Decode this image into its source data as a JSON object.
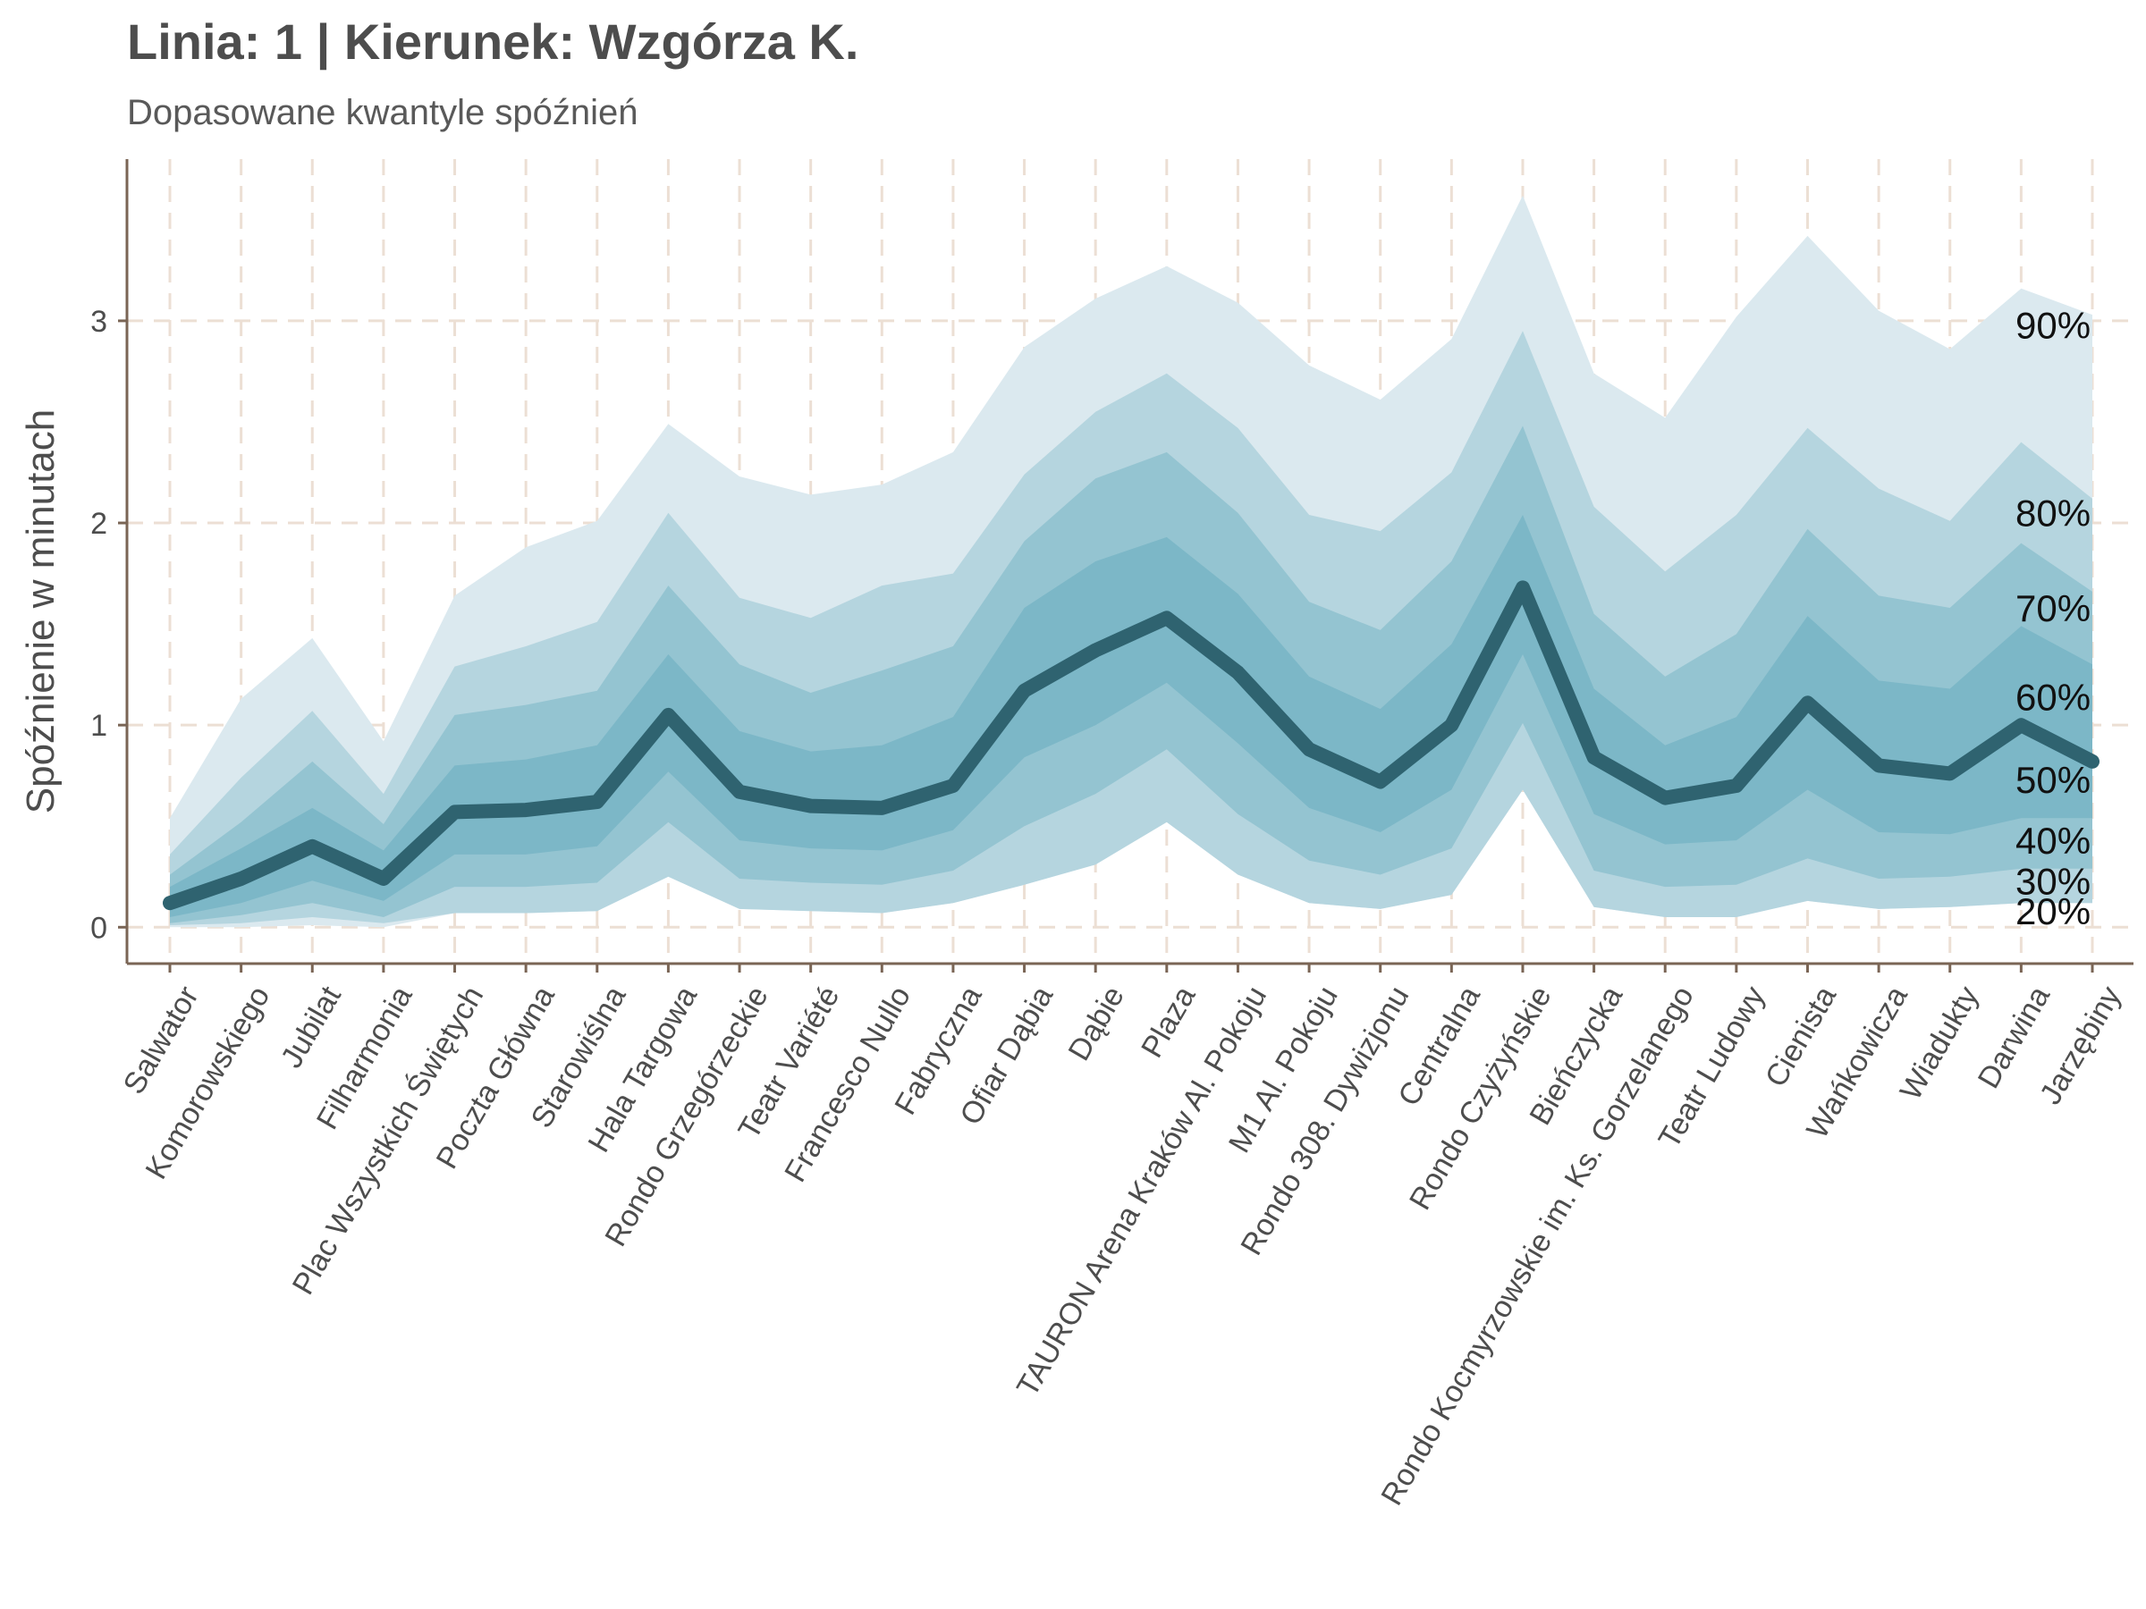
{
  "chart_data": {
    "type": "area",
    "title": "Linia: 1 | Kierunek: Wzgórza K.",
    "subtitle": "Dopasowane kwantyle spóźnień",
    "xlabel": "",
    "ylabel": "Spóźnienie w minutach",
    "ylim": [
      -0.18,
      3.8
    ],
    "y_ticks": [
      0,
      1,
      2,
      3
    ],
    "grid": true,
    "categories": [
      "Salwator",
      "Komorowskiego",
      "Jubilat",
      "Filharmonia",
      "Plac Wszystkich Świętych",
      "Poczta Główna",
      "Starowiślna",
      "Hala Targowa",
      "Rondo Grzegórzeckie",
      "Teatr Variété",
      "Francesco Nullo",
      "Fabryczna",
      "Ofiar Dąbia",
      "Dąbie",
      "Plaza",
      "TAURON Arena Kraków Al. Pokoju",
      "M1 Al. Pokoju",
      "Rondo 308. Dywizjonu",
      "Centralna",
      "Rondo Czyżyńskie",
      "Bieńczycka",
      "Rondo Kocmyrzowskie im. Ks. Gorzelanego",
      "Teatr Ludowy",
      "Cienista",
      "Wańkowicza",
      "Wiadukty",
      "Darwina",
      "Jarzębiny"
    ],
    "bands": [
      {
        "lower": [
          0.0,
          0.0,
          0.01,
          0.0,
          0.07,
          0.07,
          0.08,
          0.25,
          0.09,
          0.08,
          0.07,
          0.12,
          0.21,
          0.31,
          0.52,
          0.26,
          0.12,
          0.09,
          0.16,
          0.68,
          0.1,
          0.05,
          0.05,
          0.13,
          0.09,
          0.1,
          0.12,
          0.12
        ],
        "upper": [
          0.54,
          1.13,
          1.43,
          0.92,
          1.64,
          1.88,
          2.01,
          2.49,
          2.23,
          2.14,
          2.19,
          2.35,
          2.87,
          3.11,
          3.27,
          3.09,
          2.78,
          2.61,
          2.91,
          3.62,
          2.74,
          2.52,
          3.02,
          3.42,
          3.05,
          2.86,
          3.16,
          3.03
        ],
        "color": "#dbe9ef"
      },
      {
        "lower": [
          0.01,
          0.02,
          0.05,
          0.02,
          0.07,
          0.07,
          0.08,
          0.25,
          0.09,
          0.08,
          0.07,
          0.12,
          0.21,
          0.31,
          0.52,
          0.26,
          0.12,
          0.09,
          0.16,
          0.68,
          0.1,
          0.05,
          0.05,
          0.13,
          0.09,
          0.1,
          0.12,
          0.12
        ],
        "upper": [
          0.36,
          0.74,
          1.07,
          0.66,
          1.29,
          1.39,
          1.51,
          2.05,
          1.63,
          1.53,
          1.69,
          1.75,
          2.24,
          2.55,
          2.74,
          2.47,
          2.04,
          1.96,
          2.25,
          2.95,
          2.08,
          1.76,
          2.04,
          2.47,
          2.17,
          2.01,
          2.4,
          2.12
        ],
        "color": "#b5d5df"
      },
      {
        "lower": [
          0.02,
          0.06,
          0.12,
          0.05,
          0.2,
          0.2,
          0.22,
          0.52,
          0.24,
          0.22,
          0.21,
          0.28,
          0.5,
          0.66,
          0.88,
          0.56,
          0.33,
          0.26,
          0.39,
          1.01,
          0.28,
          0.2,
          0.21,
          0.34,
          0.24,
          0.25,
          0.29,
          0.29
        ],
        "upper": [
          0.26,
          0.52,
          0.82,
          0.51,
          1.05,
          1.1,
          1.17,
          1.69,
          1.3,
          1.16,
          1.27,
          1.39,
          1.91,
          2.22,
          2.35,
          2.05,
          1.61,
          1.47,
          1.81,
          2.48,
          1.55,
          1.24,
          1.45,
          1.97,
          1.64,
          1.58,
          1.9,
          1.66
        ],
        "color": "#94c4d1"
      },
      {
        "lower": [
          0.05,
          0.12,
          0.23,
          0.13,
          0.36,
          0.36,
          0.4,
          0.77,
          0.43,
          0.39,
          0.38,
          0.48,
          0.84,
          1.0,
          1.21,
          0.91,
          0.59,
          0.47,
          0.68,
          1.35,
          0.56,
          0.41,
          0.43,
          0.68,
          0.47,
          0.46,
          0.54,
          0.54
        ],
        "upper": [
          0.2,
          0.39,
          0.59,
          0.38,
          0.8,
          0.83,
          0.9,
          1.35,
          0.97,
          0.87,
          0.9,
          1.04,
          1.58,
          1.81,
          1.93,
          1.65,
          1.24,
          1.08,
          1.4,
          2.04,
          1.18,
          0.9,
          1.04,
          1.54,
          1.22,
          1.18,
          1.49,
          1.3
        ],
        "color": "#7cb7c7"
      }
    ],
    "series": [
      {
        "name": "50%",
        "values": [
          0.12,
          0.24,
          0.4,
          0.24,
          0.57,
          0.58,
          0.62,
          1.05,
          0.67,
          0.6,
          0.59,
          0.7,
          1.17,
          1.37,
          1.53,
          1.26,
          0.88,
          0.72,
          1.0,
          1.68,
          0.84,
          0.64,
          0.7,
          1.11,
          0.8,
          0.76,
          1.0,
          0.82
        ],
        "color": "#2f6370"
      }
    ],
    "quantile_labels": [
      {
        "text": "90%",
        "y": 2.98
      },
      {
        "text": "80%",
        "y": 2.05
      },
      {
        "text": "70%",
        "y": 1.58
      },
      {
        "text": "60%",
        "y": 1.14
      },
      {
        "text": "50%",
        "y": 0.73
      },
      {
        "text": "40%",
        "y": 0.43
      },
      {
        "text": "30%",
        "y": 0.23
      },
      {
        "text": "20%",
        "y": 0.08
      }
    ],
    "colors": {
      "axis": "#7a6555",
      "grid": "#ecdfd4",
      "text": "#4d4d4d"
    }
  }
}
